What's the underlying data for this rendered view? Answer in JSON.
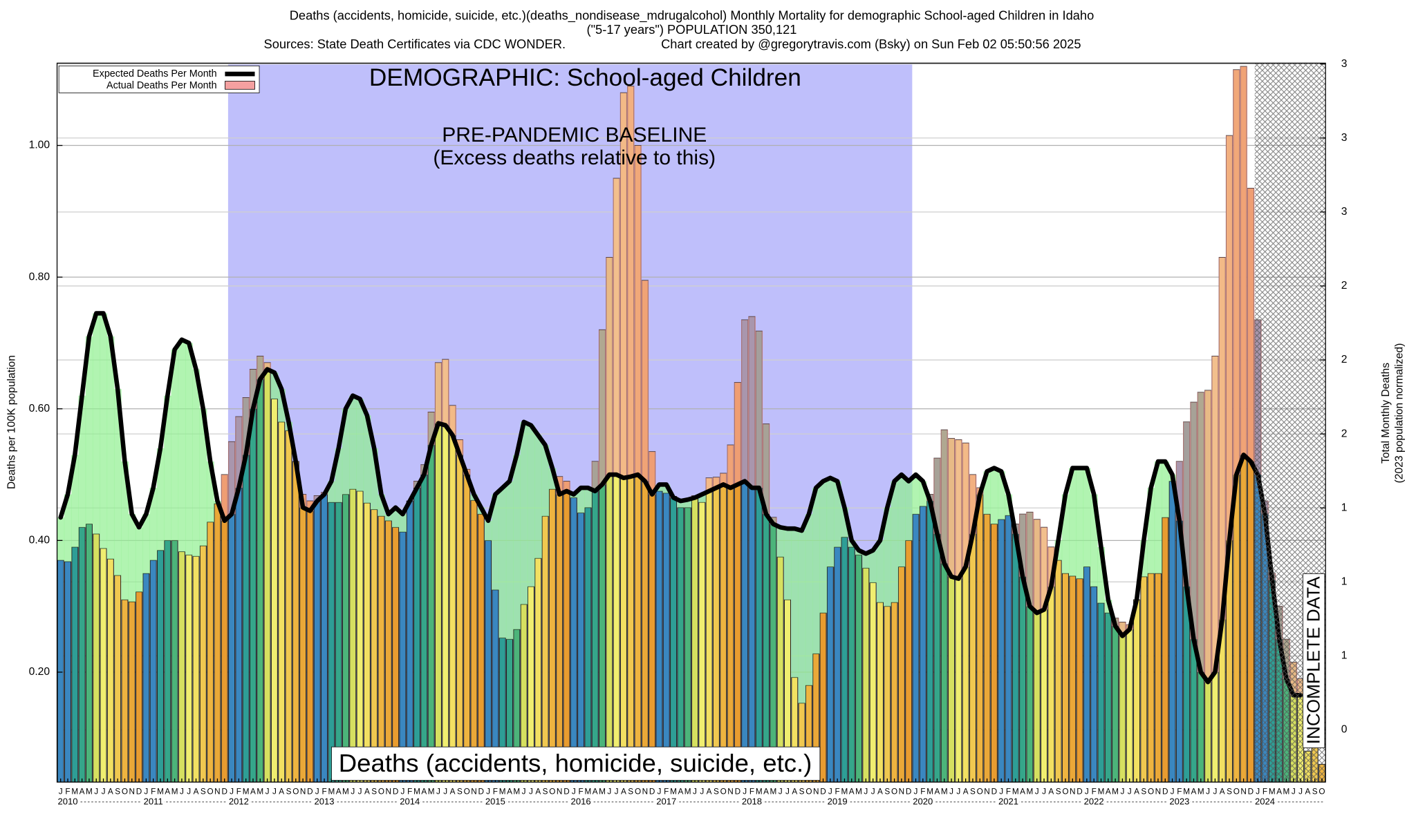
{
  "chart_data": {
    "type": "bar",
    "title": "Deaths (accidents, homicide, suicide, etc.)(deaths_nondisease_mdrugalcohol) Monthly Mortality for demographic School-aged Children in Idaho",
    "subtitle": "(\"5-17 years\") POPULATION 350,121",
    "source": "Sources: State Death Certificates via CDC WONDER.",
    "credit": "Chart created by @gregorytravis.com (Bsky) on Sun Feb 02 05:50:56 2025",
    "ylabel": "Deaths per 100K population",
    "y2label": "Total Monthly Deaths",
    "y2label_note": "(2023 population normalized)",
    "annotations": {
      "demographic": "DEMOGRAPHIC: School-aged Children",
      "baseline": "PRE-PANDEMIC BASELINE",
      "baseline_note": "(Excess deaths relative to this)",
      "cause": "Deaths (accidents, homicide, suicide, etc.)",
      "incomplete": "INCOMPLETE DATA"
    },
    "legend": "upper left",
    "grid": true,
    "ylim": [
      0.033,
      1.125
    ],
    "yticks": [
      {
        "value": 0.2,
        "label": "0.20"
      },
      {
        "value": 0.4,
        "label": "0.40"
      },
      {
        "value": 0.6,
        "label": "0.60"
      },
      {
        "value": 0.8,
        "label": "0.80"
      },
      {
        "value": 1.0,
        "label": "1.00"
      }
    ],
    "y2lim": [
      0.1,
      3.404
    ],
    "y2ticks": [
      {
        "value": 0.34,
        "label": "0"
      },
      {
        "value": 0.68,
        "label": "1"
      },
      {
        "value": 1.02,
        "label": "1"
      },
      {
        "value": 1.36,
        "label": "1"
      },
      {
        "value": 1.7,
        "label": "2"
      },
      {
        "value": 2.04,
        "label": "2"
      },
      {
        "value": 2.38,
        "label": "2"
      },
      {
        "value": 2.72,
        "label": "3"
      },
      {
        "value": 3.06,
        "label": "3"
      },
      {
        "value": 3.4,
        "label": "3"
      }
    ],
    "years": [
      "2010",
      "2011",
      "2012",
      "2013",
      "2014",
      "2015",
      "2016",
      "2017",
      "2018",
      "2019",
      "2020",
      "2021",
      "2022",
      "2023",
      "2024"
    ],
    "categories": [
      "J",
      "F",
      "M",
      "A",
      "M",
      "J",
      "J",
      "A",
      "S",
      "O",
      "N",
      "D",
      "J",
      "F",
      "M",
      "A",
      "M",
      "J",
      "J",
      "A",
      "S",
      "O",
      "N",
      "D",
      "J",
      "F",
      "M",
      "A",
      "M",
      "J",
      "J",
      "A",
      "S",
      "O",
      "N",
      "D",
      "J",
      "F",
      "M",
      "A",
      "M",
      "J",
      "J",
      "A",
      "S",
      "O",
      "N",
      "D",
      "J",
      "F",
      "M",
      "A",
      "M",
      "J",
      "J",
      "A",
      "S",
      "O",
      "N",
      "D",
      "J",
      "F",
      "M",
      "A",
      "M",
      "J",
      "J",
      "A",
      "S",
      "O",
      "N",
      "D",
      "J",
      "F",
      "M",
      "A",
      "M",
      "J",
      "J",
      "A",
      "S",
      "O",
      "N",
      "D",
      "J",
      "F",
      "M",
      "A",
      "M",
      "J",
      "J",
      "A",
      "S",
      "O",
      "N",
      "D",
      "J",
      "F",
      "M",
      "A",
      "M",
      "J",
      "J",
      "A",
      "S",
      "O",
      "N",
      "D",
      "J",
      "F",
      "M",
      "A",
      "M",
      "J",
      "J",
      "A",
      "S",
      "O",
      "N",
      "D",
      "J",
      "F",
      "M",
      "A",
      "M",
      "J",
      "J",
      "A",
      "S",
      "O",
      "N",
      "D",
      "J",
      "F",
      "M",
      "A",
      "M",
      "J",
      "J",
      "A",
      "S",
      "O",
      "N",
      "D",
      "J",
      "F",
      "M",
      "A",
      "M",
      "J",
      "J",
      "A",
      "S",
      "O",
      "N",
      "D",
      "J",
      "F",
      "M",
      "A",
      "M",
      "J",
      "J",
      "A",
      "S",
      "O",
      "N",
      "D",
      "J",
      "F",
      "M",
      "A",
      "M",
      "J",
      "J",
      "A",
      "S",
      "O"
    ],
    "month_colors": [
      "#3a87c0",
      "#3a87c0",
      "#2e9e96",
      "#35a68a",
      "#4cb47a",
      "#d6e060",
      "#f0ee70",
      "#f2e062",
      "#f0c850",
      "#eeb440",
      "#eaa838",
      "#e89c30"
    ],
    "deficit_color": "#90f090",
    "series": [
      {
        "name": "Expected Deaths Per Month",
        "color": "#000000",
        "values": [
          0.435,
          0.47,
          0.53,
          0.62,
          0.71,
          0.745,
          0.745,
          0.71,
          0.63,
          0.52,
          0.44,
          0.42,
          0.44,
          0.48,
          0.54,
          0.62,
          0.69,
          0.705,
          0.7,
          0.66,
          0.6,
          0.52,
          0.46,
          0.43,
          0.44,
          0.48,
          0.53,
          0.6,
          0.645,
          0.66,
          0.655,
          0.63,
          0.58,
          0.52,
          0.45,
          0.445,
          0.46,
          0.47,
          0.49,
          0.54,
          0.6,
          0.62,
          0.615,
          0.59,
          0.54,
          0.47,
          0.44,
          0.45,
          0.44,
          0.46,
          0.48,
          0.5,
          0.545,
          0.578,
          0.575,
          0.56,
          0.53,
          0.5,
          0.47,
          0.45,
          0.43,
          0.47,
          0.48,
          0.49,
          0.53,
          0.58,
          0.575,
          0.56,
          0.545,
          0.51,
          0.47,
          0.475,
          0.47,
          0.48,
          0.48,
          0.475,
          0.485,
          0.5,
          0.5,
          0.495,
          0.497,
          0.5,
          0.49,
          0.47,
          0.485,
          0.485,
          0.465,
          0.46,
          0.462,
          0.465,
          0.47,
          0.475,
          0.48,
          0.485,
          0.48,
          0.485,
          0.49,
          0.48,
          0.48,
          0.44,
          0.425,
          0.42,
          0.418,
          0.418,
          0.415,
          0.44,
          0.48,
          0.49,
          0.495,
          0.49,
          0.45,
          0.4,
          0.385,
          0.38,
          0.385,
          0.4,
          0.45,
          0.49,
          0.5,
          0.49,
          0.5,
          0.49,
          0.46,
          0.41,
          0.365,
          0.345,
          0.342,
          0.36,
          0.41,
          0.47,
          0.505,
          0.51,
          0.505,
          0.47,
          0.41,
          0.345,
          0.3,
          0.29,
          0.295,
          0.33,
          0.4,
          0.47,
          0.51,
          0.51,
          0.51,
          0.47,
          0.39,
          0.31,
          0.27,
          0.255,
          0.265,
          0.31,
          0.4,
          0.48,
          0.52,
          0.52,
          0.5,
          0.43,
          0.33,
          0.25,
          0.2,
          0.185,
          0.2,
          0.28,
          0.4,
          0.5,
          0.53,
          0.52,
          0.5,
          0.44,
          0.34,
          0.25,
          0.19,
          0.165,
          0.165,
          null,
          null,
          null
        ]
      },
      {
        "name": "Actual Deaths Per Month",
        "color": "#f4a0a0",
        "values": [
          0.37,
          0.368,
          0.39,
          0.42,
          0.425,
          0.41,
          0.388,
          0.372,
          0.347,
          0.31,
          0.307,
          0.322,
          0.35,
          0.37,
          0.385,
          0.4,
          0.4,
          0.383,
          0.378,
          0.376,
          0.392,
          0.428,
          0.456,
          0.5,
          0.55,
          0.588,
          0.617,
          0.66,
          0.68,
          0.67,
          0.615,
          0.58,
          0.567,
          0.52,
          0.47,
          0.46,
          0.468,
          0.473,
          0.458,
          0.458,
          0.47,
          0.478,
          0.475,
          0.457,
          0.447,
          0.437,
          0.43,
          0.42,
          0.413,
          0.46,
          0.49,
          0.515,
          0.595,
          0.67,
          0.675,
          0.605,
          0.553,
          0.508,
          0.461,
          0.44,
          0.4,
          0.325,
          0.252,
          0.25,
          0.265,
          0.303,
          0.33,
          0.373,
          0.437,
          0.478,
          0.497,
          0.49,
          0.465,
          0.442,
          0.45,
          0.52,
          0.72,
          0.83,
          0.95,
          1.08,
          1.09,
          1.0,
          0.795,
          0.535,
          0.475,
          0.472,
          0.467,
          0.45,
          0.45,
          0.468,
          0.458,
          0.495,
          0.496,
          0.502,
          0.545,
          0.64,
          0.735,
          0.74,
          0.718,
          0.577,
          0.435,
          0.375,
          0.31,
          0.192,
          0.153,
          0.18,
          0.228,
          0.29,
          0.36,
          0.39,
          0.405,
          0.39,
          0.378,
          0.358,
          0.336,
          0.306,
          0.3,
          0.306,
          0.36,
          0.4,
          0.44,
          0.452,
          0.47,
          0.525,
          0.568,
          0.555,
          0.553,
          0.548,
          0.5,
          0.48,
          0.44,
          0.425,
          0.432,
          0.438,
          0.425,
          0.44,
          0.443,
          0.432,
          0.42,
          0.39,
          0.37,
          0.35,
          0.346,
          0.342,
          0.36,
          0.33,
          0.305,
          0.29,
          0.282,
          0.276,
          0.272,
          0.31,
          0.345,
          0.35,
          0.35,
          0.435,
          0.49,
          0.52,
          0.58,
          0.61,
          0.625,
          0.628,
          0.68,
          0.83,
          1.015,
          1.115,
          1.12,
          0.935,
          0.735,
          0.46,
          0.35,
          0.3,
          0.25,
          0.215,
          0.19,
          0.08,
          0.1,
          0.06
        ]
      }
    ]
  }
}
